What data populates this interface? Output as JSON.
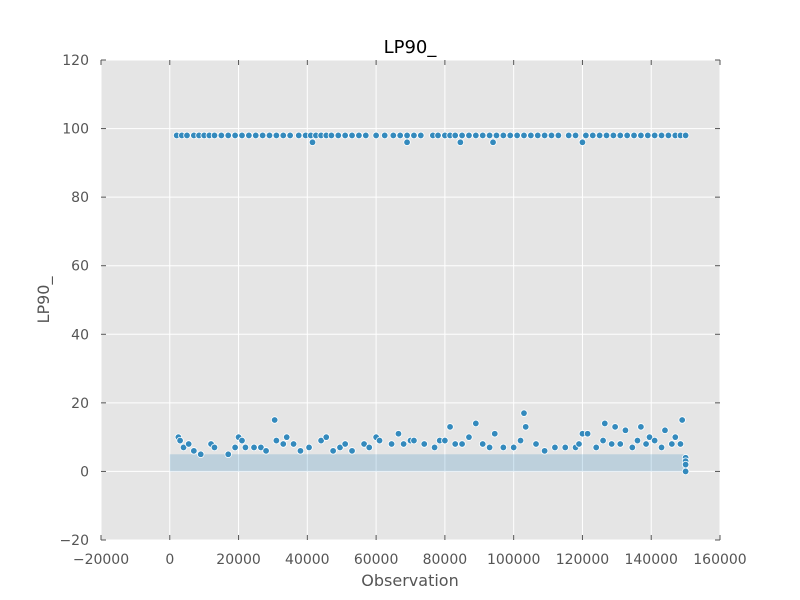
{
  "chart_data": {
    "type": "scatter",
    "title": "LP90_",
    "xlabel": "Observation",
    "ylabel": "LP90_",
    "xlim": [
      -20000,
      160000
    ],
    "ylim": [
      -20,
      120
    ],
    "x_ticks": [
      -20000,
      0,
      20000,
      40000,
      60000,
      80000,
      100000,
      120000,
      140000,
      160000
    ],
    "y_ticks": [
      -20,
      0,
      20,
      40,
      60,
      80,
      100,
      120
    ],
    "x_tick_labels": [
      "−20000",
      "0",
      "20000",
      "40000",
      "60000",
      "80000",
      "100000",
      "120000",
      "140000",
      "160000"
    ],
    "y_tick_labels": [
      "−20",
      "0",
      "20",
      "40",
      "60",
      "80",
      "100",
      "120"
    ],
    "grid": true,
    "background_color": "#e5e5e5",
    "marker_color": "#348abd",
    "series": [
      {
        "name": "",
        "points": [
          [
            2000,
            98
          ],
          [
            3500,
            98
          ],
          [
            5000,
            98
          ],
          [
            7000,
            98
          ],
          [
            8500,
            98
          ],
          [
            10000,
            98
          ],
          [
            11500,
            98
          ],
          [
            13000,
            98
          ],
          [
            15000,
            98
          ],
          [
            17000,
            98
          ],
          [
            19000,
            98
          ],
          [
            21000,
            98
          ],
          [
            23000,
            98
          ],
          [
            25000,
            98
          ],
          [
            27000,
            98
          ],
          [
            29000,
            98
          ],
          [
            31000,
            98
          ],
          [
            33000,
            98
          ],
          [
            35000,
            98
          ],
          [
            37500,
            98
          ],
          [
            39500,
            98
          ],
          [
            41000,
            98
          ],
          [
            42500,
            98
          ],
          [
            44000,
            98
          ],
          [
            45500,
            98
          ],
          [
            47000,
            98
          ],
          [
            49000,
            98
          ],
          [
            51000,
            98
          ],
          [
            53000,
            98
          ],
          [
            55000,
            98
          ],
          [
            57000,
            98
          ],
          [
            60000,
            98
          ],
          [
            62500,
            98
          ],
          [
            65000,
            98
          ],
          [
            67000,
            98
          ],
          [
            69000,
            98
          ],
          [
            71000,
            98
          ],
          [
            73000,
            98
          ],
          [
            76500,
            98
          ],
          [
            78000,
            98
          ],
          [
            80000,
            98
          ],
          [
            81500,
            98
          ],
          [
            83000,
            98
          ],
          [
            85000,
            98
          ],
          [
            87000,
            98
          ],
          [
            89000,
            98
          ],
          [
            91000,
            98
          ],
          [
            93000,
            98
          ],
          [
            95000,
            98
          ],
          [
            97000,
            98
          ],
          [
            99000,
            98
          ],
          [
            101000,
            98
          ],
          [
            103000,
            98
          ],
          [
            105000,
            98
          ],
          [
            107000,
            98
          ],
          [
            109000,
            98
          ],
          [
            111000,
            98
          ],
          [
            113000,
            98
          ],
          [
            116000,
            98
          ],
          [
            118000,
            98
          ],
          [
            121000,
            98
          ],
          [
            123000,
            98
          ],
          [
            125000,
            98
          ],
          [
            127000,
            98
          ],
          [
            129000,
            98
          ],
          [
            131000,
            98
          ],
          [
            133000,
            98
          ],
          [
            135000,
            98
          ],
          [
            137000,
            98
          ],
          [
            139000,
            98
          ],
          [
            141000,
            98
          ],
          [
            143000,
            98
          ],
          [
            145000,
            98
          ],
          [
            147000,
            98
          ],
          [
            148500,
            98
          ],
          [
            150000,
            98
          ],
          [
            41500,
            96
          ],
          [
            69000,
            96
          ],
          [
            84500,
            96
          ],
          [
            94000,
            96
          ],
          [
            120000,
            96
          ],
          [
            2500,
            10
          ],
          [
            3000,
            9
          ],
          [
            4000,
            7
          ],
          [
            5500,
            8
          ],
          [
            7000,
            6
          ],
          [
            9000,
            5
          ],
          [
            12000,
            8
          ],
          [
            13000,
            7
          ],
          [
            17000,
            5
          ],
          [
            19000,
            7
          ],
          [
            20000,
            10
          ],
          [
            21000,
            9
          ],
          [
            22000,
            7
          ],
          [
            24500,
            7
          ],
          [
            26500,
            7
          ],
          [
            28000,
            6
          ],
          [
            30500,
            15
          ],
          [
            31000,
            9
          ],
          [
            33000,
            8
          ],
          [
            34000,
            10
          ],
          [
            36000,
            8
          ],
          [
            38000,
            6
          ],
          [
            40500,
            7
          ],
          [
            44000,
            9
          ],
          [
            45500,
            10
          ],
          [
            47500,
            6
          ],
          [
            49500,
            7
          ],
          [
            51000,
            8
          ],
          [
            53000,
            6
          ],
          [
            56500,
            8
          ],
          [
            58000,
            7
          ],
          [
            60000,
            10
          ],
          [
            61000,
            9
          ],
          [
            64500,
            8
          ],
          [
            66500,
            11
          ],
          [
            68000,
            8
          ],
          [
            70000,
            9
          ],
          [
            71000,
            9
          ],
          [
            74000,
            8
          ],
          [
            77000,
            7
          ],
          [
            78500,
            9
          ],
          [
            80000,
            9
          ],
          [
            81500,
            13
          ],
          [
            83000,
            8
          ],
          [
            85000,
            8
          ],
          [
            87000,
            10
          ],
          [
            89000,
            14
          ],
          [
            91000,
            8
          ],
          [
            93000,
            7
          ],
          [
            94500,
            11
          ],
          [
            97000,
            7
          ],
          [
            100000,
            7
          ],
          [
            102000,
            9
          ],
          [
            103000,
            17
          ],
          [
            103500,
            13
          ],
          [
            106500,
            8
          ],
          [
            109000,
            6
          ],
          [
            112000,
            7
          ],
          [
            115000,
            7
          ],
          [
            118000,
            7
          ],
          [
            119000,
            8
          ],
          [
            120000,
            11
          ],
          [
            121500,
            11
          ],
          [
            124000,
            7
          ],
          [
            126000,
            9
          ],
          [
            126500,
            14
          ],
          [
            128500,
            8
          ],
          [
            129500,
            13
          ],
          [
            131000,
            8
          ],
          [
            132500,
            12
          ],
          [
            134500,
            7
          ],
          [
            136000,
            9
          ],
          [
            137000,
            13
          ],
          [
            138500,
            8
          ],
          [
            139500,
            10
          ],
          [
            141000,
            9
          ],
          [
            143000,
            7
          ],
          [
            144000,
            12
          ],
          [
            146000,
            8
          ],
          [
            147000,
            10
          ],
          [
            148500,
            8
          ],
          [
            149000,
            15
          ],
          [
            150000,
            4
          ],
          [
            150000,
            3
          ],
          [
            150000,
            2
          ],
          [
            150000,
            0
          ]
        ]
      }
    ]
  }
}
